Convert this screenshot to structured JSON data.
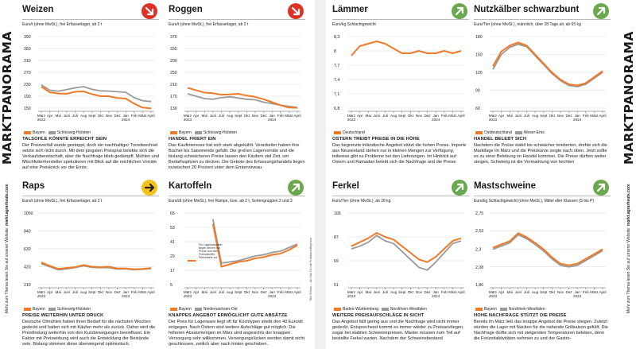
{
  "page": {
    "section_title": "MARKTPANORAMA",
    "side_note": "Mehr zum Thema lesen Sie auf unserer Website:",
    "side_url": "markt.agrarheute.com"
  },
  "colors": {
    "orange": "#f07a28",
    "grey": "#9a9a9a",
    "red": "#e03127",
    "yellow": "#f4c21a",
    "green": "#6aa84f"
  },
  "month_ticks": [
    "März\n2023",
    "Apr",
    "Mai",
    "Juni",
    "Juli",
    "Aug",
    "Sept",
    "Okt",
    "Nov",
    "Dez",
    "Jan\n2024",
    "Feb",
    "März",
    "April"
  ],
  "panels": [
    {
      "id": "weizen",
      "title": "Weizen",
      "trend": "down",
      "trend_icon": "arrow-down-right-icon",
      "unit": "Euro/t (ohne MwSt.), frei Erfasserlager, ab 2 t",
      "chart_data": {
        "type": "line",
        "yticks": [
          150,
          190,
          230,
          270,
          310,
          350,
          390
        ],
        "ylim": [
          150,
          390
        ],
        "series": [
          {
            "name": "Bayern",
            "color": "orange",
            "values": [
              222,
              203,
              199,
              198,
              205,
              206,
              197,
              190,
              190,
              184,
              182,
              165,
              152,
              149
            ]
          },
          {
            "name": "Schleswig-Holstein",
            "color": "grey",
            "values": [
              228,
              210,
              207,
              212,
              218,
              222,
              213,
              208,
              207,
              205,
              203,
              185,
              175,
              172
            ]
          }
        ]
      },
      "headline": "TALSOHLE KÖNNTE ERREICHT SEIN",
      "body": "Der Preisverfall wurde gestoppt, doch ein nachhaltiger Trendwechsel setzte sich nicht durch. Mit dem jüngsten Preisplus belebte sich die Verkaufsbereitschaft, aber die Nachfrage blieb gedämpft. Mühlen und Mischfutterhersteller spekulieren mit Blick auf die reichlichen Vorräte auf eine Preisknick vor der Ernte."
    },
    {
      "id": "roggen",
      "title": "Roggen",
      "trend": "down",
      "trend_icon": "arrow-down-right-icon",
      "unit": "Euro/t (ohne MwSt.), frei Erfasserlager, ab 2 t",
      "chart_data": {
        "type": "line",
        "yticks": [
          130,
          170,
          210,
          250,
          290,
          330,
          370
        ],
        "ylim": [
          130,
          370
        ],
        "series": [
          {
            "name": "Bayern",
            "color": "orange",
            "values": [
              198,
              190,
              182,
              180,
              175,
              176,
              178,
              172,
              168,
              160,
              150,
              140,
              132,
              131
            ]
          },
          {
            "name": "Schleswig-Holstein",
            "color": "grey",
            "values": [
              178,
              170,
              162,
              160,
              165,
              168,
              164,
              160,
              158,
              150,
              145,
              140,
              136,
              132
            ]
          }
        ]
      },
      "headline": "HANDEL FRIERT EIN",
      "body": "Das Kaufinteresse hat sich stark abgekühlt. Verarbeiter haben ihre Bücher bis Saisonende gefüllt. Die großen Lagervorräte und die bislang schwächeren Preise lassen den Käufern viel Zeit, um Bedarfsspitzen zu decken. Die Gebote des Erfassungshandels liegen inzwischen 20 Prozent unter dem Erntenniveau."
    },
    {
      "id": "raps",
      "title": "Raps",
      "trend": "side",
      "trend_icon": "arrow-right-icon",
      "unit": "Euro/t (ohne MwSt.), frei Erfasserlager, ab 2 t",
      "chart_data": {
        "type": "line",
        "yticks": [
          210,
          420,
          630,
          840,
          1050
        ],
        "ylim": [
          210,
          1050
        ],
        "series": [
          {
            "name": "Bayern",
            "color": "orange",
            "values": [
              470,
              430,
              395,
              405,
              415,
              440,
              420,
              415,
              420,
              400,
              400,
              390,
              395,
              405
            ]
          },
          {
            "name": "Schleswig-Holstein",
            "color": "grey",
            "values": [
              455,
              420,
              385,
              395,
              410,
              430,
              412,
              408,
              410,
              392,
              395,
              385,
              390,
              398
            ]
          }
        ]
      },
      "headline": "PREISE WEITERHIN UNTER DRUCK",
      "body": "Deutsche Ölmühlen haben ihren Bedarf für die nächsten Wochen gedeckt und halten sich mit Käufen mehr als zurück. Daher wird die Preisfindung weiterhin von den Kursbewegungen beeinflusst. Ein Faktor mit Preiswirkung wird auch die Entwicklung der Bestände sein. Bislang stimmen diese überwiegend optimistisch."
    },
    {
      "id": "kartoffeln",
      "title": "Kartoffeln",
      "trend": "up",
      "trend_icon": "arrow-up-right-icon",
      "unit": "Euro/dt (ohne MwSt.), frei Rampe, lose, ab 2 t, Sortengruppen 2 und 3",
      "annotation": "Für Lagerkartoffeln liegen derzeit nur Preise aus dem Frühkartoffel-Freiverkehr vor",
      "side_label": "*Bis 50mm – ab Mai 24 mit Frühkartoffelpreis",
      "chart_data": {
        "type": "line",
        "yticks": [
          5,
          17,
          29,
          41,
          53,
          65
        ],
        "ylim": [
          5,
          65
        ],
        "series": [
          {
            "name": "Bayern",
            "color": "orange",
            "values": [
              25,
              25,
              null,
              56,
              20,
              22,
              24,
              25,
              27,
              28,
              30,
              31,
              34,
              38
            ]
          },
          {
            "name": "Niedersachsen-Ost",
            "color": "grey",
            "values": [
              null,
              null,
              null,
              60,
              23,
              24,
              25,
              27,
              29,
              30,
              32,
              33,
              36,
              39
            ]
          }
        ]
      },
      "headline": "KNAPPES ANGEBOT ERMÖGLICHT GUTE ABSÄTZE",
      "body": "Der Preis für Lagerware liegt oft für Kochtypen strebt den 40 Euro/dt entgegen. Nach Ostern sind weitere Aufschläge gut möglich. Die höheren Absatzmengen im März sind angesichts der knappen Versorgung sehr willkommen. Versorgungslücken werden damit nicht geschlossen, zeitlich aber nach hinten geschoben."
    },
    {
      "id": "laemmer",
      "title": "Lämmer",
      "trend": "up",
      "trend_icon": "arrow-up-right-icon",
      "unit": "Euro/kg Schlachtgewicht",
      "chart_data": {
        "type": "line",
        "yticks": [
          6.8,
          7.1,
          7.4,
          7.7,
          8.0,
          8.3
        ],
        "ylim": [
          6.8,
          8.3
        ],
        "series": [
          {
            "name": "Deutschland",
            "color": "orange",
            "values": [
              7.9,
              8.1,
              8.15,
              8.2,
              8.15,
              8.05,
              7.95,
              7.95,
              8.0,
              7.95,
              7.95,
              8.0,
              7.95,
              8.0
            ]
          }
        ]
      },
      "headline": "OSTERN TREIBT PREISE IN DIE HÖHE",
      "body": "Das begrenzte inländische Angebot stützt die hohen Preise. Importe aus Neuseeland stehen nur in kleinen Mengen zur Verfügung, teilweise gibt es Probleme bei den Lieferungen. Im Hinblick auf Ostern und Ramadan belebt sich die Nachfrage und die Preise"
    },
    {
      "id": "nutzkaelber",
      "title": "Nutzkälber schwarzbunt",
      "trend": "up",
      "trend_icon": "arrow-up-right-icon",
      "unit": "Euro/Tier (ohne MwSt.), männlich, über 28 Tage alt, ab 65 kg",
      "chart_data": {
        "type": "line",
        "yticks": [
          60,
          90,
          120,
          150,
          180
        ],
        "ylim": [
          60,
          180
        ],
        "series": [
          {
            "name": "Ostdeutschland",
            "color": "orange",
            "values": [
              130,
              155,
              165,
              170,
              165,
              150,
              135,
              120,
              108,
              100,
              98,
              102,
              112,
              122
            ]
          },
          {
            "name": "Weser-Ems",
            "color": "grey",
            "values": [
              125,
              150,
              162,
              167,
              163,
              148,
              133,
              118,
              106,
              98,
              96,
              100,
              110,
              120
            ]
          }
        ]
      },
      "headline": "HANDEL BELEBT SICH",
      "body": "Nachdem die Preise stabil bis schwächer tendierten, drehte sich die Marktlage im März und die Preiskurve zeigte nach oben. Jetzt sollte es zu einer Belebung im Handel kommen. Die Preise dürften weiter steigen, Schwierig ist die Vermarktung von leichten"
    },
    {
      "id": "ferkel",
      "title": "Ferkel",
      "trend": "up",
      "trend_icon": "arrow-up-right-icon",
      "unit": "Euro/Tier (ohne MwSt.), ab 28 kg",
      "chart_data": {
        "type": "line",
        "yticks": [
          51,
          69,
          87,
          105
        ],
        "ylim": [
          51,
          105
        ],
        "series": [
          {
            "name": "Baden-Württemberg",
            "color": "orange",
            "values": [
              80,
              83,
              86,
              90,
              87,
              85,
              80,
              75,
              70,
              68,
              72,
              78,
              84,
              86
            ]
          },
          {
            "name": "Nordrhein-Westfalen",
            "color": "grey",
            "values": [
              78,
              80,
              83,
              88,
              84,
              82,
              76,
              70,
              64,
              62,
              68,
              75,
              82,
              84
            ]
          }
        ]
      },
      "headline": "WEITERE PREISAUFSCHLÄGE IN SICHT",
      "body": "Das Angebot fällt gering aus und die Nachfrage wird nicht immer gedeckt. Entsprechend kommt es immer wieder zu Preisanstiegen, sogar bei stabilen Schweinepreisen. Mäster müssen zum Teil auf bestellte Ferkel warten. Nachdem der Schweinebestand"
    },
    {
      "id": "mastschweine",
      "title": "Mastschweine",
      "trend": "up",
      "trend_icon": "arrow-up-right-icon",
      "unit": "Euro/kg Schlachtgewicht (ohne MwSt.), Mittel aller Klassen (S bis P)",
      "chart_data": {
        "type": "line",
        "yticks": [
          1.86,
          2.08,
          2.3,
          2.53,
          2.75
        ],
        "ylim": [
          1.86,
          2.75
        ],
        "series": [
          {
            "name": "Bayern",
            "color": "orange",
            "values": [
              2.32,
              2.36,
              2.4,
              2.5,
              2.45,
              2.38,
              2.3,
              2.2,
              2.12,
              2.1,
              2.12,
              2.18,
              2.24,
              2.3
            ]
          },
          {
            "name": "Nordrhein-Westfalen",
            "color": "grey",
            "values": [
              2.3,
              2.34,
              2.38,
              2.48,
              2.43,
              2.36,
              2.28,
              2.18,
              2.1,
              2.08,
              2.1,
              2.16,
              2.22,
              2.28
            ]
          }
        ]
      },
      "headline": "HOHE NACHFRAGE STÜTZT DIE PREISE",
      "body": "Bereits im März ließ das knappe Angebot die Preise steigen. Zuletzt wurden die Lager mit Nacken für die nahende Grillsaison gefüllt. Die Nachfrage dürfte sich mit steigenden Temperaturen beleben, denn die Freizeitaktivitäten nehmen zu und der Gastro-"
    }
  ]
}
